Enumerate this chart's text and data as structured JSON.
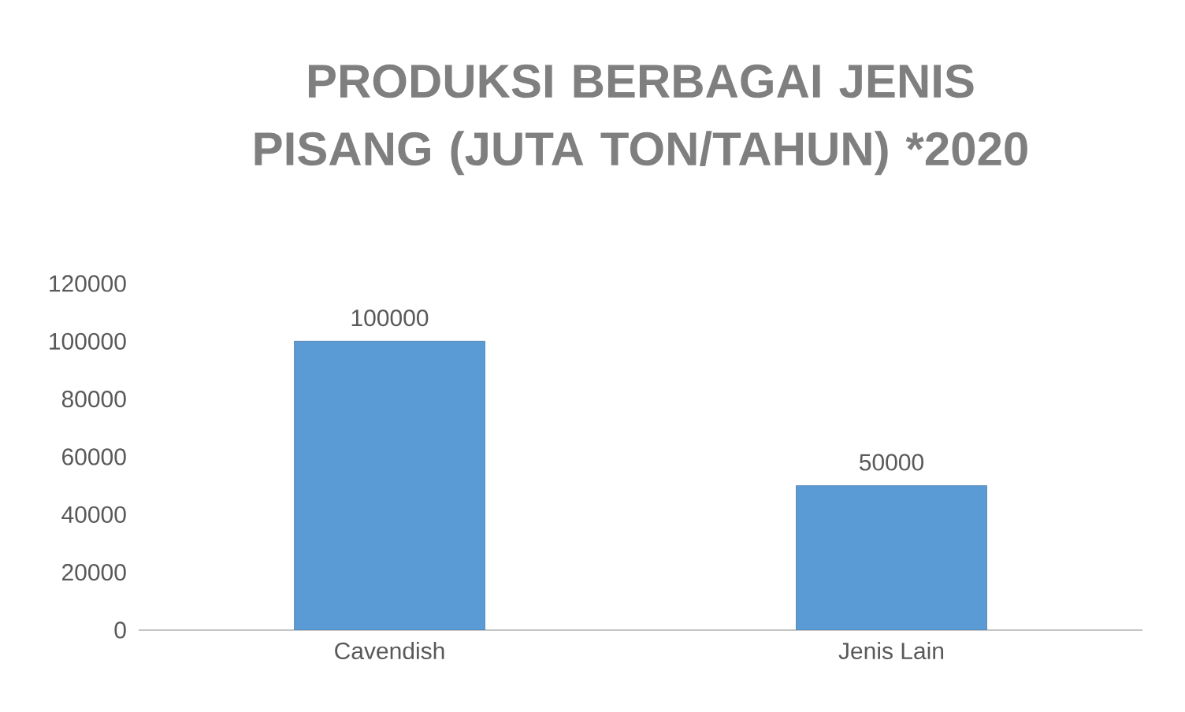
{
  "chart_data": {
    "type": "bar",
    "title": "PRODUKSI BERBAGAI JENIS PISANG (JUTA TON/TAHUN) *2020",
    "categories": [
      "Cavendish",
      "Jenis Lain"
    ],
    "values": [
      100000,
      50000
    ],
    "color": "#5b9bd5",
    "ylim": [
      0,
      120000
    ],
    "yticks": [
      0,
      20000,
      40000,
      60000,
      80000,
      100000,
      120000
    ],
    "data_labels": true,
    "grid": false
  }
}
